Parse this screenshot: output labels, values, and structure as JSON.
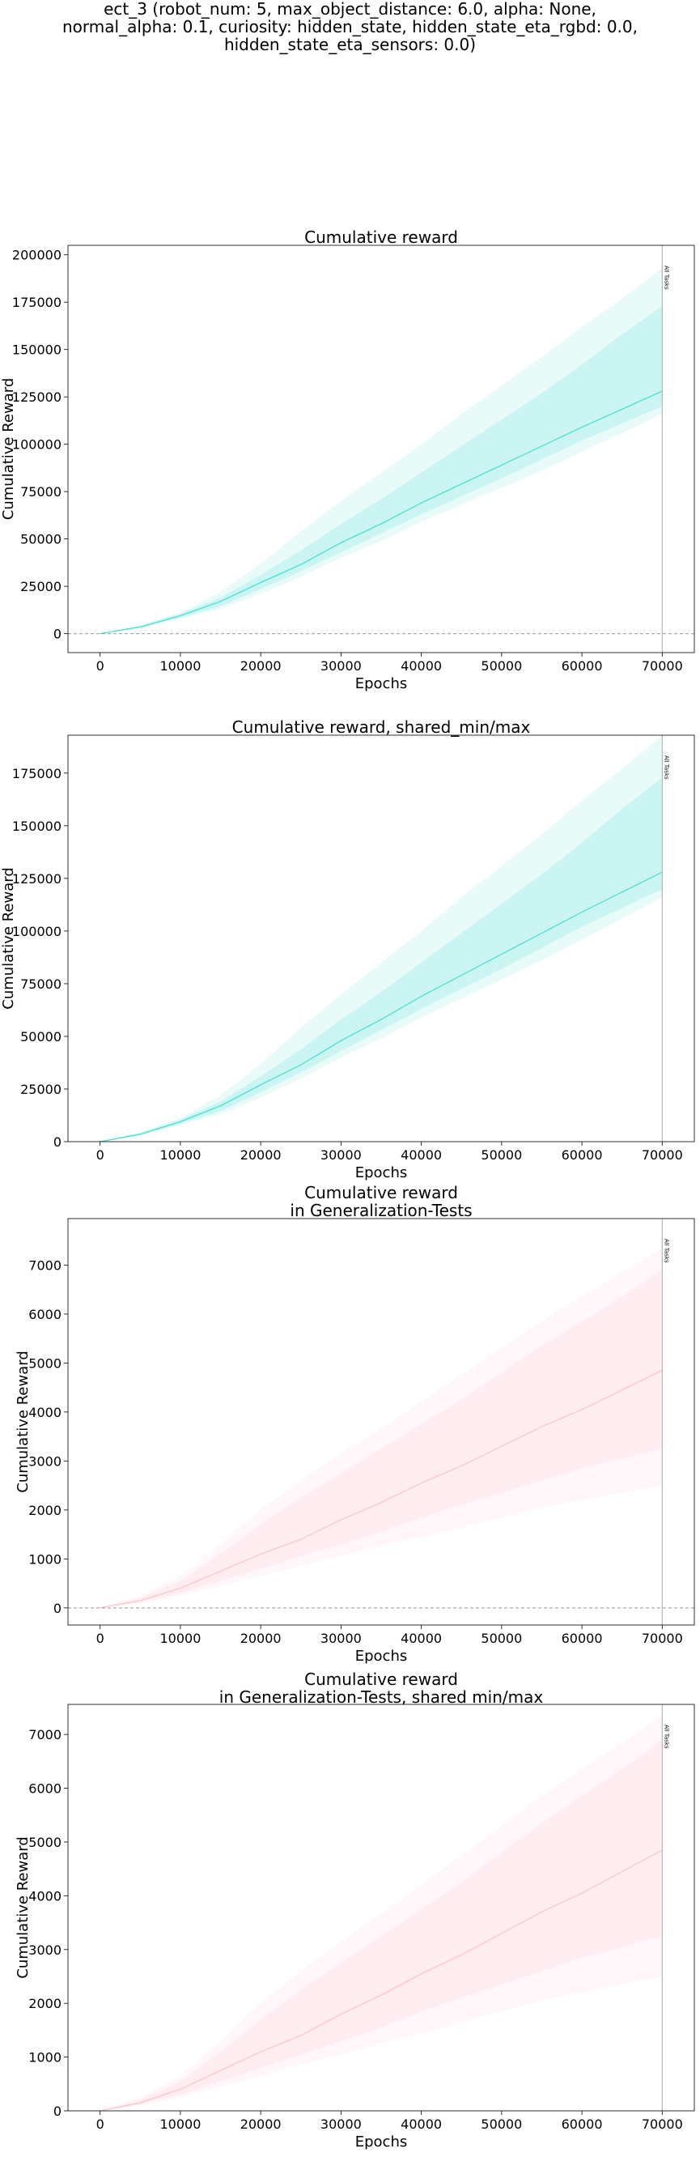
{
  "figure": {
    "title": "ect_3 (robot_num: 5, max_object_distance: 6.0, alpha: None,\nnormal_alpha: 0.1, curiosity: hidden_state, hidden_state_eta_rgbd: 0.0,\nhidden_state_eta_sensors: 0.0)"
  },
  "chart_data": [
    {
      "type": "line",
      "title": "Cumulative reward",
      "xlabel": "Epochs",
      "ylabel": "Cumulative Reward",
      "xlim": [
        -4000,
        74000
      ],
      "ylim": [
        -10000,
        205000
      ],
      "xticks": [
        0,
        10000,
        20000,
        30000,
        40000,
        50000,
        60000,
        70000
      ],
      "yticks": [
        0,
        25000,
        50000,
        75000,
        100000,
        125000,
        150000,
        175000,
        200000
      ],
      "zero_line": true,
      "color": "#40e0d0",
      "vline": {
        "x": 70000,
        "label": "All Tasks"
      },
      "series": [
        {
          "x": [
            0,
            5000,
            10000,
            15000,
            20000,
            25000,
            30000,
            35000,
            40000,
            45000,
            50000,
            55000,
            60000,
            65000,
            70000
          ],
          "y": [
            0,
            3500,
            9500,
            17000,
            27000,
            36500,
            48000,
            58000,
            69000,
            79000,
            89000,
            99000,
            109000,
            118500,
            128000
          ],
          "band_outer_low": [
            0,
            3000,
            8000,
            13000,
            21000,
            30000,
            40000,
            49000,
            59000,
            68000,
            77000,
            86000,
            96000,
            106000,
            116000
          ],
          "band_outer_high": [
            0,
            4500,
            11000,
            22000,
            37000,
            54000,
            70000,
            85000,
            100000,
            116000,
            131000,
            146000,
            162000,
            177000,
            193000
          ],
          "band_inner_low": [
            0,
            3200,
            8500,
            14500,
            23500,
            33000,
            43000,
            53000,
            63000,
            72500,
            82000,
            92000,
            102000,
            111000,
            120000
          ],
          "band_inner_high": [
            0,
            4200,
            10500,
            19000,
            31000,
            44000,
            58000,
            71000,
            85000,
            99000,
            113000,
            127000,
            142000,
            158000,
            173000
          ]
        }
      ]
    },
    {
      "type": "line",
      "title": "Cumulative reward, shared_min/max",
      "xlabel": "Epochs",
      "ylabel": "Cumulative Reward",
      "xlim": [
        -4000,
        74000
      ],
      "ylim": [
        0,
        193000
      ],
      "xticks": [
        0,
        10000,
        20000,
        30000,
        40000,
        50000,
        60000,
        70000
      ],
      "yticks": [
        0,
        25000,
        50000,
        75000,
        100000,
        125000,
        150000,
        175000
      ],
      "zero_line": false,
      "color": "#40e0d0",
      "vline": {
        "x": 70000,
        "label": "All Tasks"
      },
      "series": [
        {
          "x": [
            0,
            5000,
            10000,
            15000,
            20000,
            25000,
            30000,
            35000,
            40000,
            45000,
            50000,
            55000,
            60000,
            65000,
            70000
          ],
          "y": [
            0,
            3500,
            9500,
            17000,
            27000,
            36500,
            48000,
            58000,
            69000,
            79000,
            89000,
            99000,
            109000,
            118500,
            128000
          ],
          "band_outer_low": [
            0,
            3000,
            8000,
            13000,
            21000,
            30000,
            40000,
            49000,
            59000,
            68000,
            77000,
            86000,
            96000,
            106000,
            116000
          ],
          "band_outer_high": [
            0,
            4500,
            11000,
            22000,
            37000,
            54000,
            70000,
            85000,
            100000,
            116000,
            131000,
            146000,
            162000,
            177000,
            193000
          ],
          "band_inner_low": [
            0,
            3200,
            8500,
            14500,
            23500,
            33000,
            43000,
            53000,
            63000,
            72500,
            82000,
            92000,
            102000,
            111000,
            120000
          ],
          "band_inner_high": [
            0,
            4200,
            10500,
            19000,
            31000,
            44000,
            58000,
            71000,
            85000,
            99000,
            113000,
            127000,
            142000,
            158000,
            173000
          ]
        }
      ]
    },
    {
      "type": "line",
      "title": "Cumulative reward\nin Generalization-Tests",
      "xlabel": "Epochs",
      "ylabel": "Cumulative Reward",
      "xlim": [
        -4000,
        74000
      ],
      "ylim": [
        -350,
        7950
      ],
      "xticks": [
        0,
        10000,
        20000,
        30000,
        40000,
        50000,
        60000,
        70000
      ],
      "yticks": [
        0,
        1000,
        2000,
        3000,
        4000,
        5000,
        6000,
        7000
      ],
      "zero_line": true,
      "color": "#ffc0cb",
      "vline": {
        "x": 70000,
        "label": "All Tasks"
      },
      "series": [
        {
          "x": [
            0,
            5000,
            10000,
            15000,
            20000,
            25000,
            30000,
            35000,
            40000,
            45000,
            50000,
            55000,
            60000,
            65000,
            70000
          ],
          "y": [
            0,
            150,
            400,
            750,
            1100,
            1400,
            1800,
            2150,
            2550,
            2900,
            3300,
            3700,
            4050,
            4450,
            4850
          ],
          "band_outer_low": [
            0,
            100,
            250,
            450,
            650,
            850,
            1050,
            1250,
            1450,
            1650,
            1850,
            2050,
            2200,
            2350,
            2500
          ],
          "band_outer_high": [
            0,
            250,
            650,
            1300,
            2000,
            2600,
            3150,
            3650,
            4200,
            4750,
            5300,
            5850,
            6350,
            6850,
            7350
          ],
          "band_inner_low": [
            0,
            120,
            300,
            550,
            800,
            1050,
            1300,
            1550,
            1850,
            2100,
            2350,
            2600,
            2850,
            3050,
            3250
          ],
          "band_inner_high": [
            0,
            200,
            550,
            1100,
            1700,
            2250,
            2750,
            3250,
            3750,
            4250,
            4800,
            5350,
            5850,
            6350,
            6900
          ]
        }
      ]
    },
    {
      "type": "line",
      "title": "Cumulative reward\nin Generalization-Tests, shared min/max",
      "xlabel": "Epochs",
      "ylabel": "Cumulative Reward",
      "xlim": [
        -4000,
        74000
      ],
      "ylim": [
        0,
        7560
      ],
      "xticks": [
        0,
        10000,
        20000,
        30000,
        40000,
        50000,
        60000,
        70000
      ],
      "yticks": [
        0,
        1000,
        2000,
        3000,
        4000,
        5000,
        6000,
        7000
      ],
      "zero_line": false,
      "color": "#ffc0cb",
      "vline": {
        "x": 70000,
        "label": "All Tasks"
      },
      "series": [
        {
          "x": [
            0,
            5000,
            10000,
            15000,
            20000,
            25000,
            30000,
            35000,
            40000,
            45000,
            50000,
            55000,
            60000,
            65000,
            70000
          ],
          "y": [
            0,
            150,
            400,
            750,
            1100,
            1400,
            1800,
            2150,
            2550,
            2900,
            3300,
            3700,
            4050,
            4450,
            4850
          ],
          "band_outer_low": [
            0,
            100,
            250,
            450,
            650,
            850,
            1050,
            1250,
            1450,
            1650,
            1850,
            2050,
            2200,
            2350,
            2500
          ],
          "band_outer_high": [
            0,
            250,
            650,
            1300,
            2000,
            2600,
            3150,
            3650,
            4200,
            4750,
            5300,
            5850,
            6350,
            6850,
            7350
          ],
          "band_inner_low": [
            0,
            120,
            300,
            550,
            800,
            1050,
            1300,
            1550,
            1850,
            2100,
            2350,
            2600,
            2850,
            3050,
            3250
          ],
          "band_inner_high": [
            0,
            200,
            550,
            1100,
            1700,
            2250,
            2750,
            3250,
            3750,
            4250,
            4800,
            5350,
            5850,
            6350,
            6900
          ]
        }
      ]
    }
  ]
}
